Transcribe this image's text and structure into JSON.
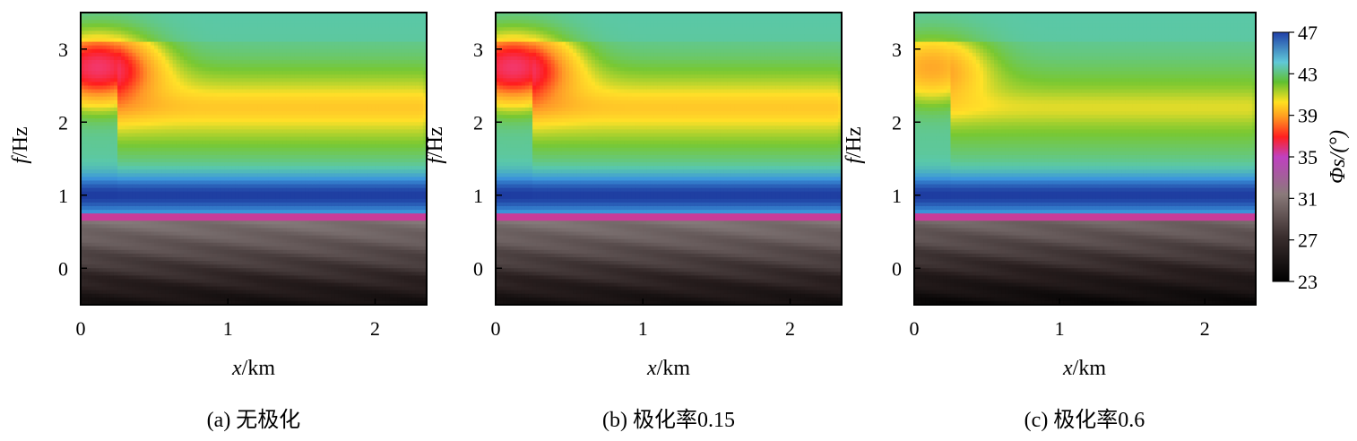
{
  "chart_data": [
    {
      "type": "heatmap",
      "caption": "(a) 无极化",
      "xlabel": "x/km",
      "ylabel": "f/Hz",
      "xlim": [
        0,
        2.35
      ],
      "ylim": [
        -0.5,
        3.5
      ],
      "x_ticks": [
        0,
        1,
        2
      ],
      "y_ticks": [
        0,
        1,
        2,
        3
      ],
      "features": {
        "peak": {
          "x": 0.12,
          "y": 2.75,
          "value": 40
        },
        "ridge": {
          "x_start": 0.35,
          "x_end": 2.15,
          "y": 2.2,
          "value": 44
        },
        "low_band": {
          "y": 1.0,
          "value": 47
        },
        "transition_y": 0.68,
        "bottom_value": 25
      }
    },
    {
      "type": "heatmap",
      "caption": "(b) 极化率0.15",
      "xlabel": "x/km",
      "ylabel": "f/Hz",
      "xlim": [
        0,
        2.35
      ],
      "ylim": [
        -0.5,
        3.5
      ],
      "x_ticks": [
        0,
        1,
        2
      ],
      "y_ticks": [
        0,
        1,
        2,
        3
      ],
      "features": {
        "peak": {
          "x": 0.12,
          "y": 2.75,
          "value": 40
        },
        "ridge": {
          "x_start": 0.35,
          "x_end": 2.15,
          "y": 2.2,
          "value": 44
        },
        "low_band": {
          "y": 1.0,
          "value": 47
        },
        "transition_y": 0.68,
        "bottom_value": 25
      }
    },
    {
      "type": "heatmap",
      "caption": "(c) 极化率0.6",
      "xlabel": "x/km",
      "ylabel": "f/Hz",
      "xlim": [
        0,
        2.35
      ],
      "ylim": [
        -0.5,
        3.5
      ],
      "x_ticks": [
        0,
        1,
        2
      ],
      "y_ticks": [
        0,
        1,
        2,
        3
      ],
      "features": {
        "peak": {
          "x": 0.12,
          "y": 2.75,
          "value": 43
        },
        "ridge": {
          "x_start": 0.35,
          "x_end": 2.15,
          "y": 2.2,
          "value": 44.5
        },
        "low_band": {
          "y": 1.0,
          "value": 47
        },
        "transition_y": 0.68,
        "bottom_value": 24
      }
    }
  ],
  "colorbar": {
    "label": "Φs/(°)",
    "ticks": [
      47,
      43,
      39,
      35,
      31,
      27,
      23
    ],
    "range": [
      23,
      47
    ],
    "colors": [
      "#000000",
      "#4a3a3a",
      "#8c7a7a",
      "#c040c0",
      "#ff2020",
      "#ff9020",
      "#ffe020",
      "#60c030",
      "#60c8d8",
      "#2050b0"
    ]
  }
}
